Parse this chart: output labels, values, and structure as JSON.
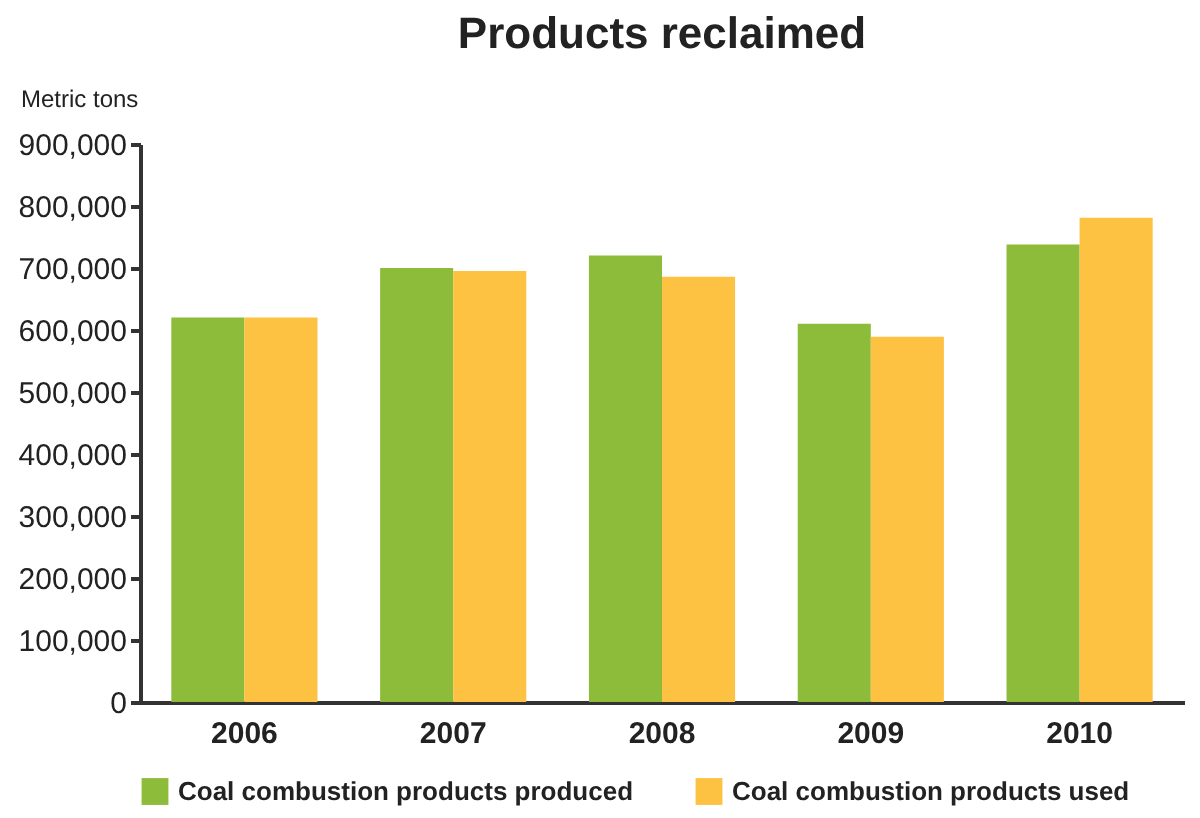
{
  "chart_data": {
    "type": "bar",
    "title": "Products reclaimed",
    "ylabel": "Metric tons",
    "categories": [
      "2006",
      "2007",
      "2008",
      "2009",
      "2010"
    ],
    "series": [
      {
        "name": "Coal combustion products produced",
        "color": "#8dbb3a",
        "values": [
          620000,
          700000,
          720000,
          610000,
          738000
        ]
      },
      {
        "name": "Coal combustion products used",
        "color": "#fdc241",
        "values": [
          620000,
          695000,
          686000,
          589000,
          781000
        ]
      }
    ],
    "ylim": [
      0,
      900000
    ],
    "yticks": [
      0,
      {
        "value": 100000,
        "label": "100,000"
      },
      {
        "value": 200000,
        "label": "200,000"
      },
      {
        "value": 300000,
        "label": "300,000"
      },
      {
        "value": 400000,
        "label": "400,000"
      },
      {
        "value": 500000,
        "label": "500,000"
      },
      {
        "value": 600000,
        "label": "600,000"
      },
      {
        "value": 700000,
        "label": "700,000"
      },
      {
        "value": 800000,
        "label": "800,000"
      },
      {
        "value": 900000,
        "label": "900,000"
      }
    ],
    "grid": false,
    "legend": "bottom"
  }
}
